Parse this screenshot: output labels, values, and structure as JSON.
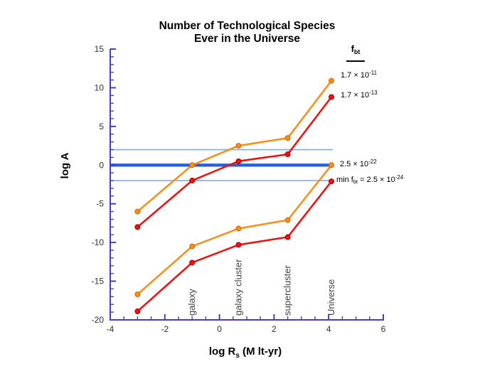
{
  "title": {
    "line1": "Number of Technological Species",
    "line2": "Ever in the Universe"
  },
  "y_axis": {
    "label": "log A"
  },
  "x_axis": {
    "label_pre": "log R",
    "label_sub": "s",
    "label_post": " (M lt-yr)"
  },
  "legend": {
    "header_base": "f",
    "header_sub": "bt"
  },
  "annotations": [
    {
      "coef": "1.7 × 10",
      "exp": "-11"
    },
    {
      "coef": "1.7 × 10",
      "exp": "-13"
    },
    {
      "coef": "2.5 × 10",
      "exp": "-22"
    },
    {
      "prefix": "min f",
      "prefix_sub": "bt",
      "mid": " = 2.5 × 10",
      "exp": "-24"
    }
  ],
  "chart_data": {
    "type": "line",
    "title": "Number of Technological Species Ever in the Universe",
    "xlabel": "log Rs (M lt-yr)",
    "ylabel": "log A",
    "xlim": [
      -4,
      6
    ],
    "ylim": [
      -20,
      15
    ],
    "x_major_ticks": [
      -4,
      -2,
      0,
      2,
      4,
      6
    ],
    "x_minor_step": 0.5,
    "y_major_ticks": [
      15,
      10,
      5,
      0,
      -5,
      -10,
      -15,
      -20
    ],
    "y_minor_step": 1,
    "grid": false,
    "legend_position": "right",
    "x": [
      -3,
      -1,
      0.7,
      2.5,
      4.1
    ],
    "series": [
      {
        "name": "f_bt = 1.7×10^-11",
        "color": "#F78F1E",
        "edge": "#D96B00",
        "values": [
          -6,
          0,
          2.5,
          3.5,
          10.9
        ]
      },
      {
        "name": "f_bt = 1.7×10^-13",
        "color": "#EE1313",
        "edge": "#B80000",
        "values": [
          -8,
          -2,
          0.5,
          1.4,
          8.8
        ]
      },
      {
        "name": "f_bt = 2.5×10^-22",
        "color": "#F78F1E",
        "edge": "#D96B00",
        "values": [
          -16.7,
          -10.5,
          -8.2,
          -7.1,
          0
        ]
      },
      {
        "name": "min f_bt = 2.5×10^-24",
        "color": "#EE1313",
        "edge": "#B80000",
        "values": [
          -18.9,
          -12.6,
          -10.3,
          -9.3,
          -2.1
        ]
      }
    ],
    "reference_lines": [
      {
        "y": 2,
        "style": "thin",
        "color": "#86ABDC"
      },
      {
        "y": 0,
        "style": "thick",
        "color": "#2A5FD6"
      },
      {
        "y": -2,
        "style": "thin",
        "color": "#86ABDC"
      }
    ],
    "category_labels": [
      {
        "x": -1,
        "text": "galaxy"
      },
      {
        "x": 0.7,
        "text": "galaxy cluster"
      },
      {
        "x": 2.5,
        "text": "supercluster"
      },
      {
        "x": 4.1,
        "text": "Universe"
      }
    ],
    "axis_color": "#4040C6",
    "tick_label_color": "#303030",
    "category_label_color": "#444444"
  }
}
